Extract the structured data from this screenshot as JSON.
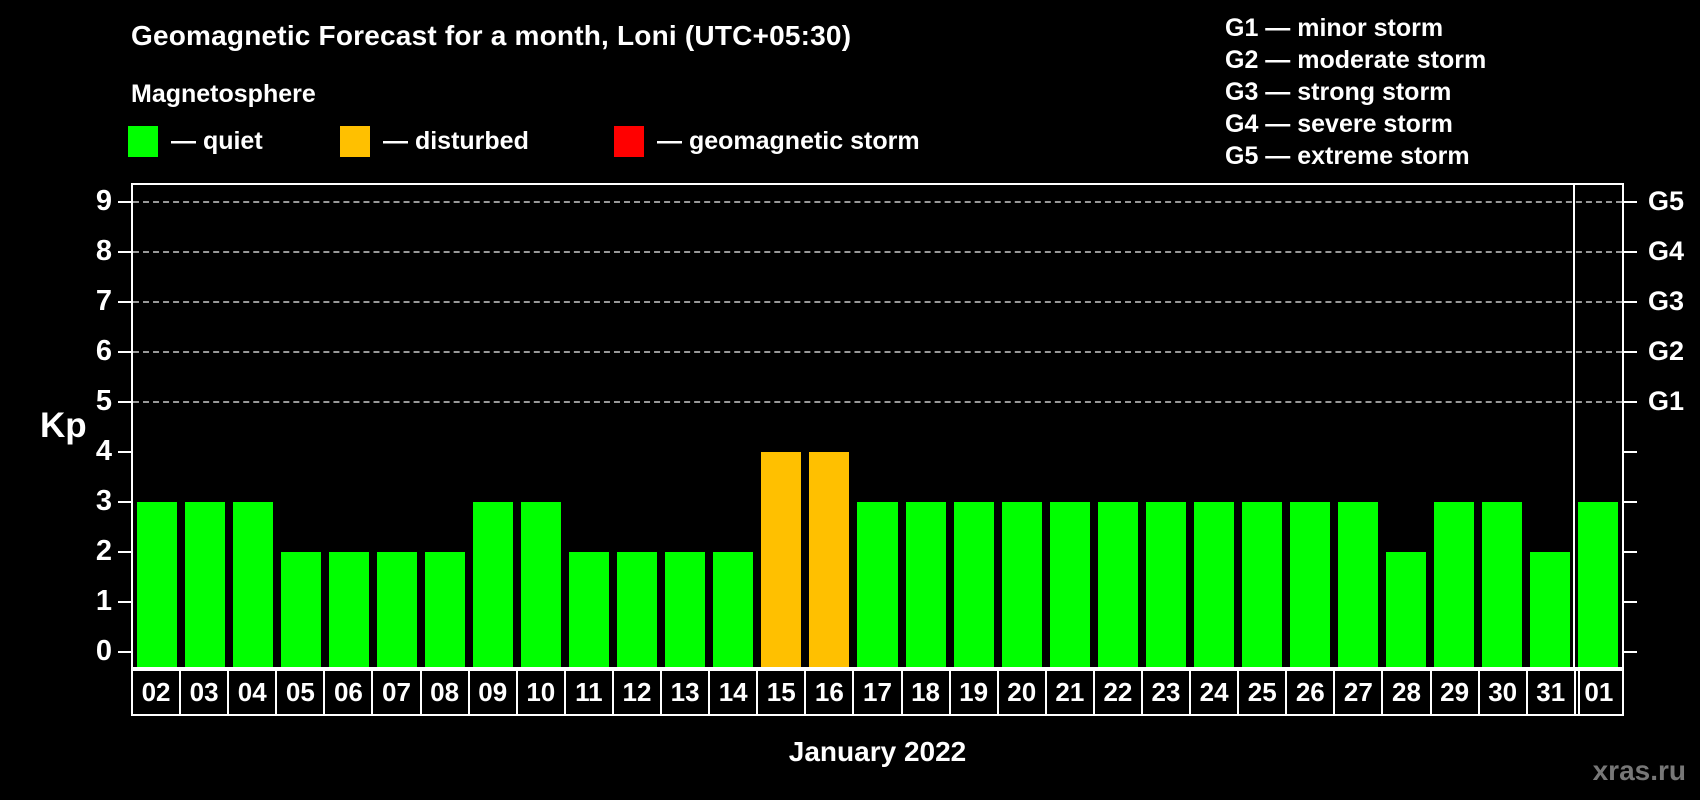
{
  "title": "Geomagnetic Forecast for a month, Loni (UTC+05:30)",
  "subtitle": "Magnetosphere",
  "legend": {
    "quiet": {
      "label": "— quiet",
      "color": "#00ff00"
    },
    "disturbed": {
      "label": "— disturbed",
      "color": "#ffc000"
    },
    "storm": {
      "label": "— geomagnetic storm",
      "color": "#ff0000"
    }
  },
  "g_legend": [
    "G1 — minor storm",
    "G2 — moderate storm",
    "G3 — strong storm",
    "G4 — severe storm",
    "G5 — extreme storm"
  ],
  "axis": {
    "y_label": "Kp",
    "x_label": "January 2022"
  },
  "watermark": "xras.ru",
  "chart_data": {
    "type": "bar",
    "title": "Geomagnetic Forecast for a month, Loni (UTC+05:30)",
    "xlabel": "January 2022",
    "ylabel": "Kp",
    "ylim": [
      0,
      9.7
    ],
    "grid": "horizontal dashed lines at Kp 5–9 (storm levels)",
    "legend_position": "top",
    "categories": [
      "02",
      "03",
      "04",
      "05",
      "06",
      "07",
      "08",
      "09",
      "10",
      "11",
      "12",
      "13",
      "14",
      "15",
      "16",
      "17",
      "18",
      "19",
      "20",
      "21",
      "22",
      "23",
      "24",
      "25",
      "26",
      "27",
      "28",
      "29",
      "30",
      "31",
      "01"
    ],
    "values": [
      3,
      3,
      3,
      2,
      2,
      2,
      2,
      3,
      3,
      2,
      2,
      2,
      2,
      4,
      4,
      3,
      3,
      3,
      3,
      3,
      3,
      3,
      3,
      3,
      3,
      3,
      2,
      3,
      3,
      2,
      3
    ],
    "statuses": [
      "quiet",
      "quiet",
      "quiet",
      "quiet",
      "quiet",
      "quiet",
      "quiet",
      "quiet",
      "quiet",
      "quiet",
      "quiet",
      "quiet",
      "quiet",
      "disturbed",
      "disturbed",
      "quiet",
      "quiet",
      "quiet",
      "quiet",
      "quiet",
      "quiet",
      "quiet",
      "quiet",
      "quiet",
      "quiet",
      "quiet",
      "quiet",
      "quiet",
      "quiet",
      "quiet",
      "quiet"
    ],
    "status_colors": {
      "quiet": "#00ff00",
      "disturbed": "#ffc000",
      "storm": "#ff0000"
    },
    "left_ticks": [
      "0",
      "1",
      "2",
      "3",
      "4",
      "5",
      "6",
      "7",
      "8",
      "9"
    ],
    "right_ticks": [
      {
        "kp": 5,
        "label": "G1"
      },
      {
        "kp": 6,
        "label": "G2"
      },
      {
        "kp": 7,
        "label": "G3"
      },
      {
        "kp": 8,
        "label": "G4"
      },
      {
        "kp": 9,
        "label": "G5"
      }
    ],
    "gridlines_kp": [
      5,
      6,
      7,
      8,
      9
    ],
    "month_separator_before_category": "01"
  }
}
